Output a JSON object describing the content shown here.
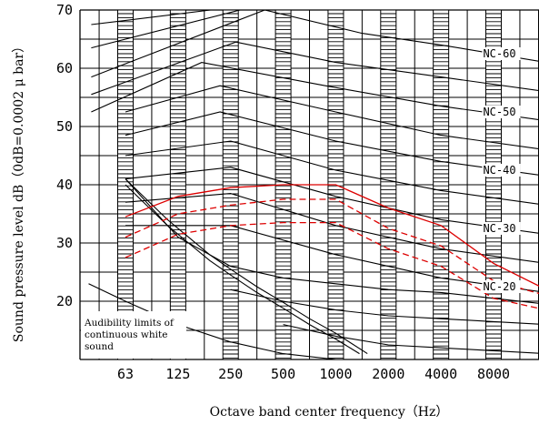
{
  "chart_data": {
    "type": "line",
    "xlabel": "Octave band center frequency（Hz）",
    "ylabel": "Sound pressure level dB（0dB=0.0002 μ bar）",
    "x_ticks": [
      "63",
      "125",
      "250",
      "500",
      "1000",
      "2000",
      "4000",
      "8000"
    ],
    "y_ticks": [
      20,
      30,
      40,
      50,
      60,
      70
    ],
    "ylim": [
      10,
      70
    ],
    "grid": true,
    "nc_labels": [
      {
        "text": "NC-60",
        "x": 6.8,
        "y": 62.5
      },
      {
        "text": "NC-50",
        "x": 6.8,
        "y": 52.5
      },
      {
        "text": "NC-40",
        "x": 6.8,
        "y": 42.5
      },
      {
        "text": "NC-30",
        "x": 6.8,
        "y": 32.5
      },
      {
        "text": "NC-20",
        "x": 6.8,
        "y": 22.5
      }
    ],
    "note": [
      "Audibility limits of",
      "continuous white",
      "sound"
    ],
    "series": [
      {
        "x": [
          -0.65,
          1.62
        ],
        "y": [
          67.5,
          70.0
        ],
        "color": "#000000",
        "style": "solid"
      },
      {
        "x": [
          -0.65,
          2.18
        ],
        "y": [
          63.5,
          70.0
        ],
        "color": "#000000",
        "style": "solid"
      },
      {
        "x": [
          -0.65,
          2.65,
          4.5,
          6.0,
          8.0
        ],
        "y": [
          58.5,
          70.0,
          66.0,
          64.0,
          61.0
        ],
        "color": "#000000",
        "style": "solid"
      },
      {
        "x": [
          -0.65,
          2.1,
          4.0,
          6.0,
          8.0
        ],
        "y": [
          55.5,
          64.5,
          61.0,
          58.5,
          56.0
        ],
        "color": "#000000",
        "style": "solid"
      },
      {
        "x": [
          -0.65,
          1.45,
          3.8,
          6.0,
          8.0
        ],
        "y": [
          52.5,
          61.0,
          57.0,
          53.5,
          51.0
        ],
        "color": "#000000",
        "style": "solid"
      },
      {
        "x": [
          0.0,
          1.8,
          4.0,
          6.0,
          8.0
        ],
        "y": [
          52.5,
          57.0,
          52.5,
          48.5,
          46.0
        ],
        "color": "#000000",
        "style": "solid"
      },
      {
        "x": [
          0.0,
          1.8,
          4.0,
          6.0,
          8.0
        ],
        "y": [
          48.5,
          52.5,
          47.5,
          44.0,
          41.5
        ],
        "color": "#000000",
        "style": "solid"
      },
      {
        "x": [
          0.0,
          2.0,
          4.0,
          6.0,
          8.0
        ],
        "y": [
          45.0,
          47.5,
          42.5,
          39.0,
          36.5
        ],
        "color": "#000000",
        "style": "solid"
      },
      {
        "x": [
          0.0,
          2.0,
          4.0,
          6.0,
          8.0
        ],
        "y": [
          41.0,
          43.0,
          38.0,
          34.0,
          31.5
        ],
        "color": "#000000",
        "style": "solid"
      },
      {
        "x": [
          0.0,
          2.0,
          4.0,
          6.0,
          8.0
        ],
        "y": [
          37.0,
          38.5,
          33.0,
          29.0,
          26.5
        ],
        "color": "#000000",
        "style": "solid"
      },
      {
        "x": [
          0.0,
          2.0,
          4.0,
          6.0,
          8.0
        ],
        "y": [
          33.0,
          33.0,
          28.0,
          24.0,
          21.5
        ],
        "color": "#000000",
        "style": "solid"
      },
      {
        "x": [
          0.0,
          1.0,
          2.0,
          3.0,
          4.0,
          5.0,
          6.0,
          7.0,
          8.0
        ],
        "y": [
          41.0,
          31.0,
          26.0,
          24.0,
          23.0,
          22.0,
          21.5,
          20.5,
          19.5
        ],
        "color": "#000000",
        "style": "solid"
      },
      {
        "x": [
          2.0,
          3.0,
          4.0,
          5.0,
          6.0,
          7.0,
          8.0
        ],
        "y": [
          22.0,
          20.0,
          18.5,
          17.5,
          17.0,
          16.5,
          16.0
        ],
        "color": "#000000",
        "style": "solid"
      },
      {
        "x": [
          3.0,
          4.0,
          5.0,
          6.0,
          7.0,
          8.0
        ],
        "y": [
          16.0,
          14.0,
          12.5,
          12.0,
          11.5,
          11.0
        ],
        "color": "#000000",
        "style": "solid"
      },
      {
        "x": [
          0.0,
          0.4,
          0.8,
          1.2,
          1.6,
          2.0,
          2.5,
          3.0,
          3.5,
          4.0,
          4.6
        ],
        "y": [
          41.0,
          37.5,
          34.0,
          31.0,
          28.0,
          25.5,
          22.5,
          19.8,
          17.0,
          14.5,
          11.0
        ],
        "color": "#000000",
        "style": "solid"
      },
      {
        "x": [
          0.0,
          0.4,
          0.8,
          1.2,
          1.6,
          2.0,
          2.5,
          3.0,
          3.5,
          4.0,
          4.45
        ],
        "y": [
          40.0,
          36.5,
          33.0,
          30.0,
          27.0,
          24.5,
          21.5,
          18.8,
          16.0,
          13.5,
          11.0
        ],
        "color": "#000000",
        "style": "solid"
      },
      {
        "x": [
          -0.7,
          0.0,
          1.0,
          2.0,
          3.0,
          4.0,
          5.0,
          6.0,
          7.0,
          8.0
        ],
        "y": [
          23.0,
          20.0,
          16.0,
          13.0,
          11.0,
          10.0,
          10.0,
          10.0,
          10.0,
          10.0
        ],
        "color": "#000000",
        "style": "solid"
      },
      {
        "x": [
          0.0,
          1.0,
          2.0,
          3.0,
          4.0,
          5.0,
          6.0,
          7.0,
          8.0
        ],
        "y": [
          34.5,
          38.0,
          39.5,
          40.0,
          40.0,
          36.0,
          33.0,
          26.5,
          22.0
        ],
        "color": "#dd0000",
        "style": "solid"
      },
      {
        "x": [
          0.0,
          1.0,
          2.0,
          3.0,
          4.0,
          5.0,
          6.0,
          7.0,
          8.0
        ],
        "y": [
          31.0,
          35.0,
          36.5,
          37.5,
          37.5,
          32.5,
          29.5,
          23.5,
          21.0
        ],
        "color": "#dd0000",
        "style": "dashed"
      },
      {
        "x": [
          0.0,
          1.0,
          2.0,
          3.0,
          4.0,
          5.0,
          6.0,
          7.0,
          8.0
        ],
        "y": [
          27.5,
          31.5,
          33.0,
          33.5,
          33.5,
          29.0,
          26.0,
          20.5,
          18.5
        ],
        "color": "#dd0000",
        "style": "dashed"
      }
    ]
  }
}
